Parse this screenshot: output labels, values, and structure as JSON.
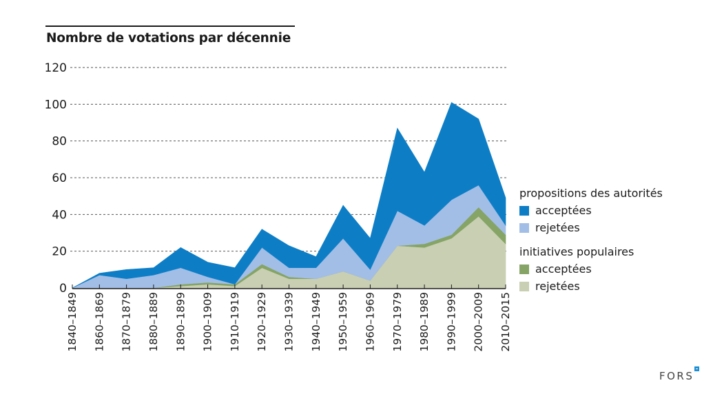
{
  "chart_data": {
    "type": "area",
    "stacked": true,
    "title": "Nombre de votations par décennie",
    "xlabel": "",
    "ylabel": "",
    "ylim": [
      0,
      120
    ],
    "yticks": [
      0,
      20,
      40,
      60,
      80,
      100,
      120
    ],
    "grid": "horizontal-dashed",
    "legend_position": "right",
    "categories": [
      "1840–1849",
      "1860–1869",
      "1870–1879",
      "1880–1889",
      "1890–1899",
      "1900–1909",
      "1910–1919",
      "1920–1929",
      "1930–1939",
      "1940–1949",
      "1950–1959",
      "1960–1969",
      "1970–1979",
      "1980–1989",
      "1990–1999",
      "2000–2009",
      "2010–2015"
    ],
    "series": [
      {
        "group": "initiatives populaires",
        "name": "rejetées",
        "color": "#c9cfb2",
        "values": [
          0,
          0,
          0,
          0,
          1,
          2,
          1,
          11,
          5,
          5,
          9,
          4,
          23,
          22,
          27,
          39,
          24
        ]
      },
      {
        "group": "initiatives populaires",
        "name": "acceptées",
        "color": "#85a466",
        "values": [
          0,
          0,
          0,
          0,
          1,
          1,
          1,
          2,
          1,
          0,
          0,
          0,
          0,
          2,
          2,
          5,
          5
        ]
      },
      {
        "group": "propositions des autorités",
        "name": "rejetées",
        "color": "#a3bee6",
        "values": [
          0,
          7,
          5,
          7,
          9,
          3,
          0,
          9,
          5,
          6,
          18,
          6,
          19,
          10,
          19,
          12,
          5
        ]
      },
      {
        "group": "propositions des autorités",
        "name": "acceptées",
        "color": "#0d7ec6",
        "values": [
          0,
          1,
          5,
          4,
          11,
          8,
          9,
          10,
          12,
          6,
          18,
          17,
          45,
          29,
          53,
          36,
          15
        ]
      }
    ]
  },
  "legend": {
    "groups": [
      {
        "title": "propositions des autorités",
        "items": [
          {
            "label": "acceptées",
            "color": "#0d7ec6"
          },
          {
            "label": "rejetées",
            "color": "#a3bee6"
          }
        ]
      },
      {
        "title": "initiatives populaires",
        "items": [
          {
            "label": "acceptées",
            "color": "#85a466"
          },
          {
            "label": "rejetées",
            "color": "#c9cfb2"
          }
        ]
      }
    ]
  },
  "branding": {
    "logo_text": "FORS",
    "logo_accent_color": "#1a8fd6"
  }
}
